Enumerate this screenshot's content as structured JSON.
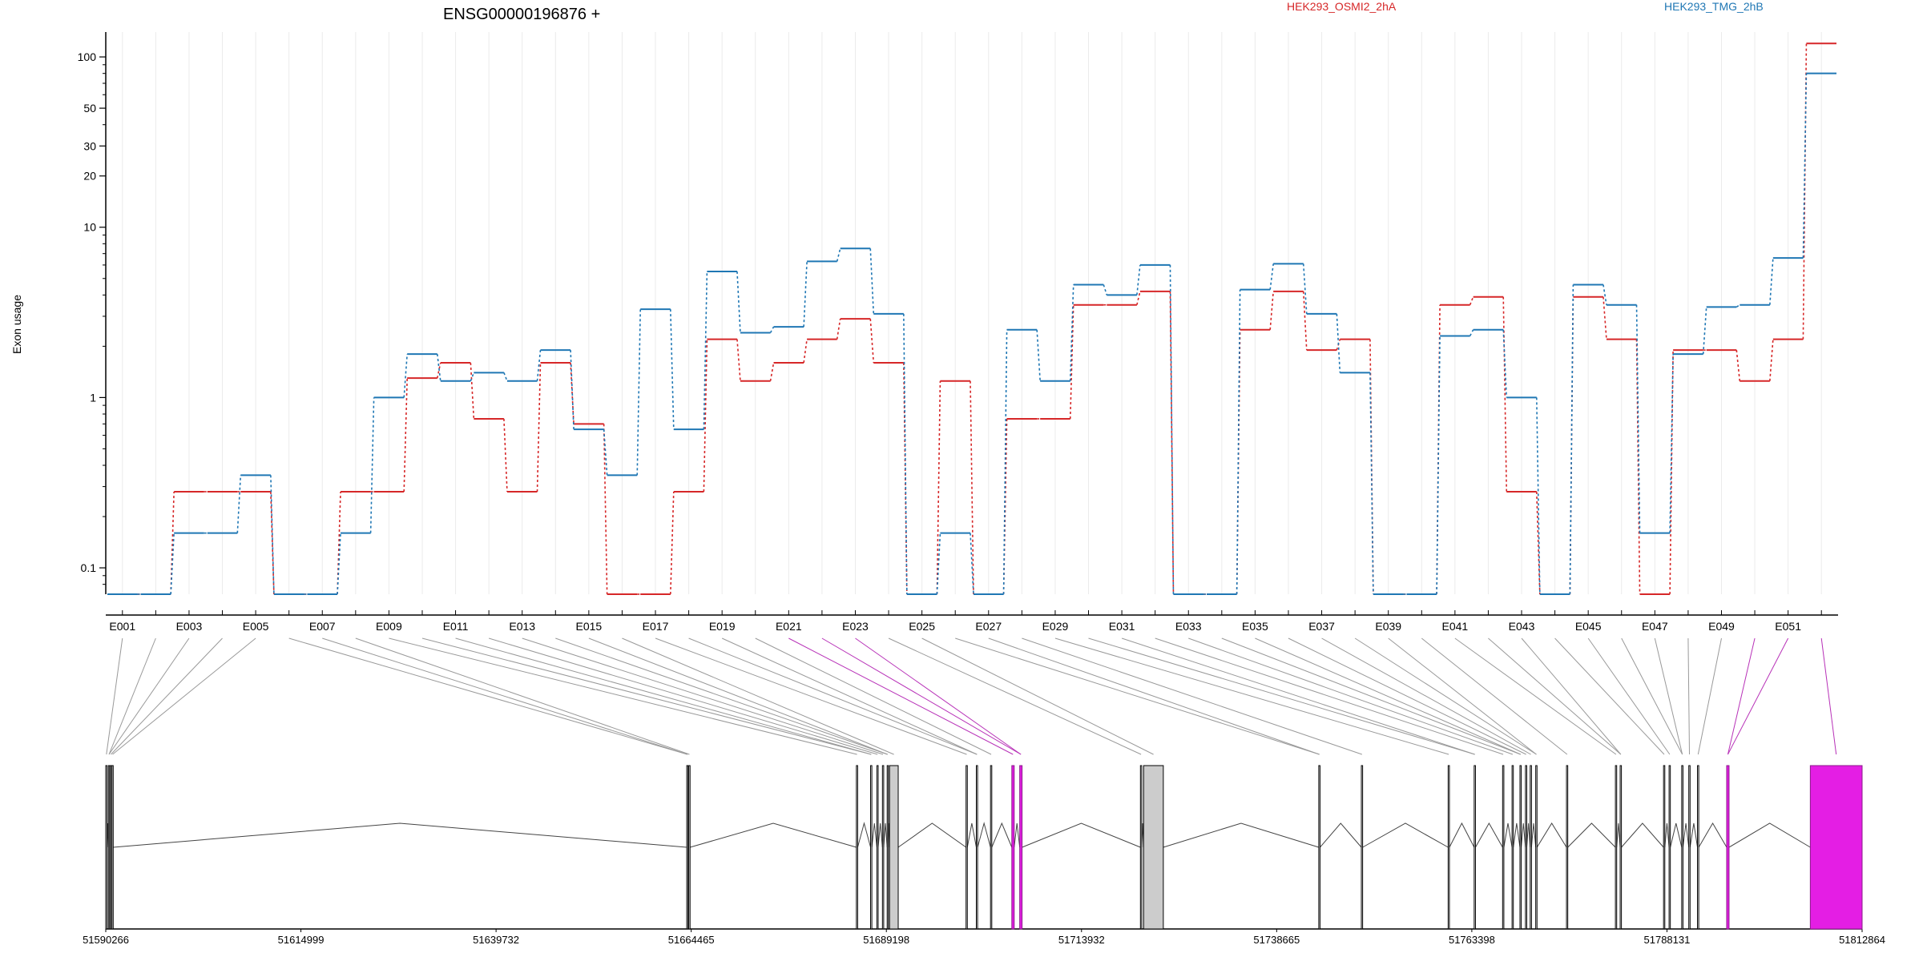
{
  "chart_data": {
    "type": "line",
    "title": "ENSG00000196876 +",
    "ylabel": "Exon usage",
    "yscale": "log",
    "ylim": [
      0.07,
      140
    ],
    "yticks": [
      0.1,
      1,
      10,
      20,
      30,
      50,
      100
    ],
    "ytick_labels": [
      "0.1",
      "1",
      "10",
      "20",
      "30",
      "50",
      "100"
    ],
    "colors": {
      "HEK293_OSMI2_2hA": "#d62728",
      "HEK293_TMG_2hB": "#1f77b4",
      "highlight": "#e41ee4",
      "exon": "#cccccc"
    },
    "exons": [
      "E001",
      "E002",
      "E003",
      "E004",
      "E005",
      "E006",
      "E007",
      "E008",
      "E009",
      "E010",
      "E011",
      "E012",
      "E013",
      "E014",
      "E015",
      "E016",
      "E017",
      "E018",
      "E019",
      "E020",
      "E021",
      "E022",
      "E023",
      "E024",
      "E025",
      "E026",
      "E027",
      "E028",
      "E029",
      "E030",
      "E031",
      "E032",
      "E033",
      "E034",
      "E035",
      "E036",
      "E037",
      "E038",
      "E039",
      "E040",
      "E041",
      "E042",
      "E043",
      "E044",
      "E045",
      "E046",
      "E047",
      "E048",
      "E049",
      "E050",
      "E051",
      "E052"
    ],
    "exon_labels": [
      "E001",
      "E003",
      "E005",
      "E007",
      "E009",
      "E011",
      "E013",
      "E015",
      "E017",
      "E019",
      "E021",
      "E023",
      "E025",
      "E027",
      "E029",
      "E031",
      "E033",
      "E035",
      "E037",
      "E039",
      "E041",
      "E043",
      "E045",
      "E047",
      "E049",
      "E051"
    ],
    "series": [
      {
        "name": "HEK293_OSMI2_2hA",
        "color": "#d62728",
        "values": [
          0.07,
          0.07,
          0.28,
          0.28,
          0.28,
          0.07,
          0.07,
          0.28,
          0.28,
          1.3,
          1.6,
          0.75,
          0.28,
          1.6,
          0.7,
          0.07,
          0.07,
          0.28,
          2.2,
          1.25,
          1.6,
          2.2,
          2.9,
          1.6,
          0.07,
          1.25,
          0.07,
          0.75,
          0.75,
          3.5,
          3.5,
          4.2,
          0.07,
          0.07,
          2.5,
          4.2,
          1.9,
          2.2,
          0.07,
          0.07,
          3.5,
          3.9,
          0.28,
          0.07,
          3.9,
          2.2,
          0.07,
          1.9,
          1.9,
          1.25,
          2.2,
          120
        ]
      },
      {
        "name": "HEK293_TMG_2hB",
        "color": "#1f77b4",
        "values": [
          0.07,
          0.07,
          0.16,
          0.16,
          0.35,
          0.07,
          0.07,
          0.16,
          1.0,
          1.8,
          1.25,
          1.4,
          1.25,
          1.9,
          0.65,
          0.35,
          3.3,
          0.65,
          5.5,
          2.4,
          2.6,
          6.3,
          7.5,
          3.1,
          0.07,
          0.16,
          0.07,
          2.5,
          1.25,
          4.6,
          4.0,
          6.0,
          0.07,
          0.07,
          4.3,
          6.1,
          3.1,
          1.4,
          0.07,
          0.07,
          2.3,
          2.5,
          1.0,
          0.07,
          4.6,
          3.5,
          0.16,
          1.8,
          3.4,
          3.5,
          6.6,
          80
        ]
      }
    ],
    "gene_track": {
      "genomic_ticks": [
        51590266,
        51614999,
        51639732,
        51664465,
        51689198,
        51713932,
        51738665,
        51763398,
        51788131,
        51812864
      ],
      "exon_blocks": [
        {
          "start": 51590266,
          "end": 51590430,
          "highlight": false
        },
        {
          "start": 51590600,
          "end": 51590760,
          "highlight": false
        },
        {
          "start": 51590840,
          "end": 51591000,
          "highlight": false
        },
        {
          "start": 51591050,
          "end": 51591210,
          "highlight": false
        },
        {
          "start": 51663900,
          "end": 51664060,
          "highlight": false
        },
        {
          "start": 51664160,
          "end": 51664320,
          "highlight": false
        },
        {
          "start": 51685400,
          "end": 51685560,
          "highlight": false
        },
        {
          "start": 51687200,
          "end": 51687360,
          "highlight": false
        },
        {
          "start": 51688000,
          "end": 51688160,
          "highlight": false
        },
        {
          "start": 51688700,
          "end": 51688860,
          "highlight": false
        },
        {
          "start": 51689300,
          "end": 51689400,
          "highlight": false
        },
        {
          "start": 51689600,
          "end": 51690700,
          "highlight": false,
          "fill": true
        },
        {
          "start": 51699300,
          "end": 51699460,
          "highlight": false
        },
        {
          "start": 51700600,
          "end": 51700760,
          "highlight": false
        },
        {
          "start": 51702400,
          "end": 51702560,
          "highlight": false
        },
        {
          "start": 51705100,
          "end": 51705400,
          "highlight": true
        },
        {
          "start": 51706100,
          "end": 51706400,
          "highlight": true
        },
        {
          "start": 51721400,
          "end": 51721560,
          "highlight": false
        },
        {
          "start": 51721800,
          "end": 51724300,
          "highlight": false,
          "fill": true
        },
        {
          "start": 51744000,
          "end": 51744160,
          "highlight": false
        },
        {
          "start": 51749400,
          "end": 51749560,
          "highlight": false
        },
        {
          "start": 51760400,
          "end": 51760560,
          "highlight": false
        },
        {
          "start": 51763700,
          "end": 51763860,
          "highlight": false
        },
        {
          "start": 51767300,
          "end": 51767460,
          "highlight": false
        },
        {
          "start": 51768500,
          "end": 51768660,
          "highlight": false
        },
        {
          "start": 51769500,
          "end": 51769660,
          "highlight": false
        },
        {
          "start": 51770200,
          "end": 51770360,
          "highlight": false
        },
        {
          "start": 51770800,
          "end": 51770960,
          "highlight": false
        },
        {
          "start": 51771500,
          "end": 51771660,
          "highlight": false
        },
        {
          "start": 51775400,
          "end": 51775560,
          "highlight": false
        },
        {
          "start": 51781600,
          "end": 51781760,
          "highlight": false
        },
        {
          "start": 51782200,
          "end": 51782360,
          "highlight": false
        },
        {
          "start": 51787700,
          "end": 51787860,
          "highlight": false
        },
        {
          "start": 51788400,
          "end": 51788560,
          "highlight": false
        },
        {
          "start": 51790000,
          "end": 51790160,
          "highlight": false
        },
        {
          "start": 51790900,
          "end": 51791060,
          "highlight": false
        },
        {
          "start": 51792000,
          "end": 51792160,
          "highlight": false
        },
        {
          "start": 51795700,
          "end": 51796000,
          "highlight": true
        },
        {
          "start": 51806300,
          "end": 51812864,
          "highlight": true
        }
      ]
    }
  },
  "legend": {
    "series_a": "HEK293_OSMI2_2hA",
    "series_b": "HEK293_TMG_2hB"
  }
}
